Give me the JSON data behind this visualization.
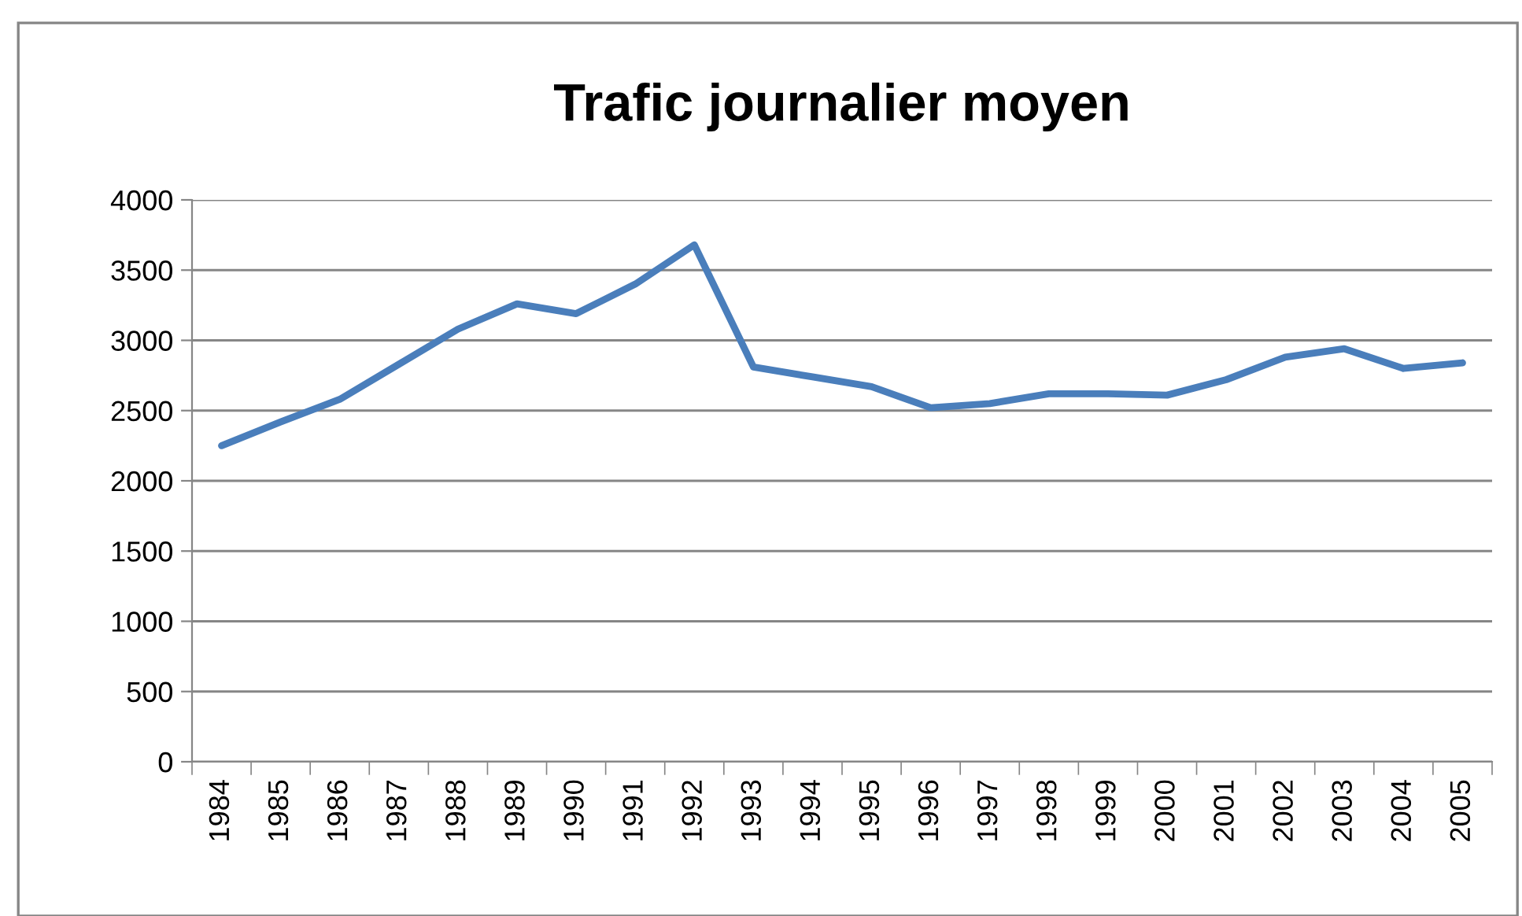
{
  "chart_data": {
    "type": "line",
    "title": "Trafic journalier moyen",
    "categories": [
      "1984",
      "1985",
      "1986",
      "1987",
      "1988",
      "1989",
      "1990",
      "1991",
      "1992",
      "1993",
      "1994",
      "1995",
      "1996",
      "1997",
      "1998",
      "1999",
      "2000",
      "2001",
      "2002",
      "2003",
      "2004",
      "2005"
    ],
    "series": [
      {
        "color": "#4a7ebb",
        "values": [
          2250,
          2420,
          2580,
          2830,
          3080,
          3260,
          3190,
          3400,
          3680,
          2810,
          2740,
          2670,
          2520,
          2550,
          2620,
          2620,
          2610,
          2720,
          2880,
          2940,
          2800,
          2840
        ]
      }
    ],
    "ylim": [
      0,
      4000
    ],
    "yticks": [
      0,
      500,
      1000,
      1500,
      2000,
      2500,
      3000,
      3500,
      4000
    ],
    "grid": "y",
    "marker": "none",
    "line_style": "solid"
  }
}
